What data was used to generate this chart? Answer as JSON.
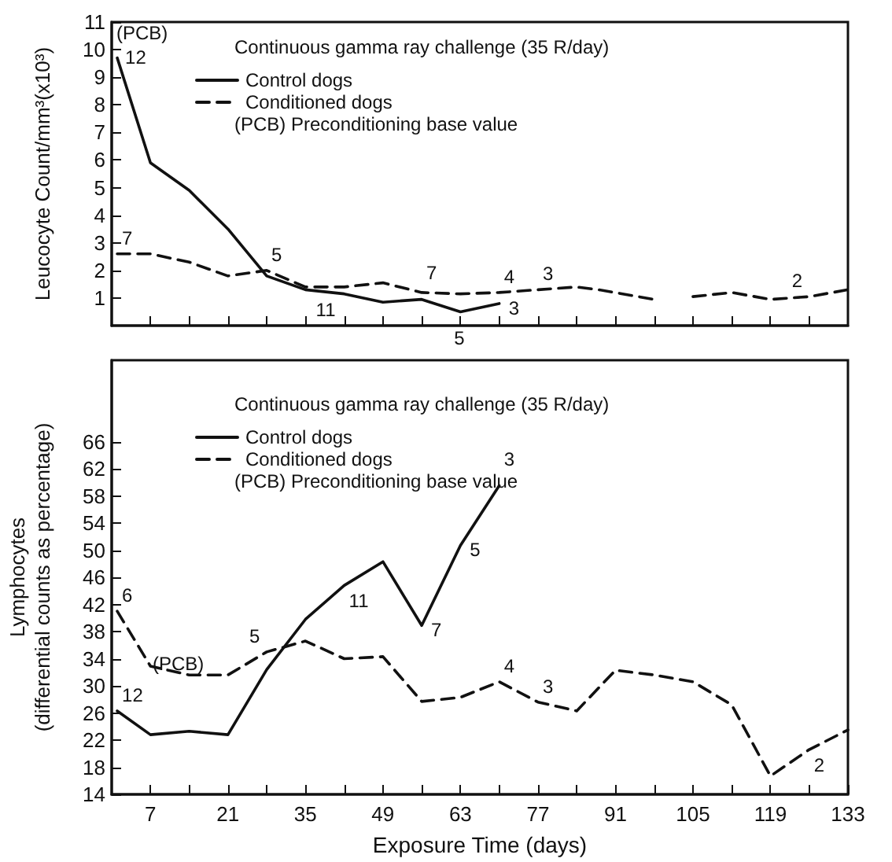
{
  "chart_data": [
    {
      "type": "line",
      "ylabel": "Leucocyte Count/mm³(x10³)",
      "legend_title": "Continuous gamma ray challenge (35 R/day)",
      "legend": "top",
      "marker": "none",
      "grid": false,
      "tick_labels": "y",
      "xlim": [
        0,
        133
      ],
      "xticks": [
        {
          "value": 7,
          "label": null
        },
        {
          "value": 14,
          "label": null
        },
        {
          "value": 21,
          "label": null
        },
        {
          "value": 28,
          "label": null
        },
        {
          "value": 35,
          "label": null
        },
        {
          "value": 42,
          "label": null
        },
        {
          "value": 49,
          "label": null
        },
        {
          "value": 56,
          "label": null
        },
        {
          "value": 63,
          "label": null
        },
        {
          "value": 70,
          "label": null
        },
        {
          "value": 77,
          "label": null
        },
        {
          "value": 84,
          "label": null
        },
        {
          "value": 91,
          "label": null
        },
        {
          "value": 98,
          "label": null
        },
        {
          "value": 105,
          "label": null
        },
        {
          "value": 112,
          "label": null
        },
        {
          "value": 119,
          "label": null
        },
        {
          "value": 126,
          "label": null
        }
      ],
      "ylim": [
        0,
        11
      ],
      "yticks": [
        1,
        2,
        3,
        4,
        5,
        6,
        7,
        8,
        9,
        10,
        11
      ],
      "series": [
        {
          "name": "Control dogs",
          "color": "#111111",
          "line_style": "solid",
          "x": [
            1,
            7,
            14,
            21,
            28,
            35,
            42,
            49,
            56,
            63,
            70
          ],
          "values": [
            9.7,
            5.9,
            4.9,
            3.5,
            1.8,
            1.3,
            1.15,
            0.85,
            0.95,
            0.5,
            0.8
          ]
        },
        {
          "name": "Conditioned dogs",
          "color": "#111111",
          "line_style": "dashed",
          "x": [
            1,
            7,
            14,
            21,
            28,
            35,
            42,
            49,
            56,
            63,
            70,
            77,
            84,
            88,
            98,
            101,
            105,
            112,
            119,
            126,
            133
          ],
          "values": [
            2.6,
            2.6,
            2.3,
            1.8,
            2.0,
            1.4,
            1.4,
            1.55,
            1.2,
            1.15,
            1.2,
            1.3,
            1.4,
            1.3,
            0.95,
            null,
            1.05,
            1.2,
            0.95,
            1.05,
            1.3
          ]
        }
      ],
      "annotations": [
        "(PCB) Preconditioning base value",
        "(PCB)",
        {
          "text": "12",
          "x": 1,
          "y": 9.7
        },
        {
          "text": "7",
          "x": 1,
          "y": 2.6
        },
        {
          "text": "5",
          "x": 28,
          "y": 2.0
        },
        {
          "text": "11",
          "x": 42,
          "y": 1.15
        },
        {
          "text": "7",
          "x": 56,
          "y": 0.95
        },
        {
          "text": "5",
          "x": 63,
          "y": 0.5
        },
        {
          "text": "3",
          "x": 70,
          "y": 0.8
        },
        {
          "text": "4",
          "x": 70,
          "y": 1.2
        },
        {
          "text": "3",
          "x": 77,
          "y": 1.3
        },
        {
          "text": "2",
          "x": 126,
          "y": 1.05
        }
      ]
    },
    {
      "type": "line",
      "xlabel": "Exposure Time (days)",
      "ylabel": "Lymphocytes\n(differential counts as percentage)",
      "legend_title": "Continuous gamma ray challenge (35 R/day)",
      "legend": "top",
      "marker": "none",
      "grid": false,
      "xlim": [
        0,
        133
      ],
      "xticks": [
        7,
        {
          "value": 14,
          "label": null
        },
        21,
        {
          "value": 28,
          "label": null
        },
        35,
        {
          "value": 42,
          "label": null
        },
        49,
        {
          "value": 56,
          "label": null
        },
        63,
        {
          "value": 70,
          "label": null
        },
        77,
        {
          "value": 84,
          "label": null
        },
        91,
        {
          "value": 98,
          "label": null
        },
        105,
        {
          "value": 112,
          "label": null
        },
        119,
        {
          "value": 126,
          "label": null
        },
        133
      ],
      "ylim": [
        14,
        78
      ],
      "yticks": [
        14,
        18,
        22,
        26,
        30,
        34,
        38,
        42,
        46,
        50,
        54,
        58,
        62,
        66
      ],
      "series": [
        {
          "name": "Control dogs",
          "color": "#111111",
          "line_style": "solid",
          "x": [
            1,
            7,
            14,
            21,
            28,
            35,
            42,
            49,
            56,
            63,
            70
          ],
          "values": [
            26.3,
            22.8,
            23.3,
            22.8,
            32.4,
            39.8,
            44.8,
            48.3,
            38.9,
            50.7,
            59.5
          ]
        },
        {
          "name": "Conditioned dogs",
          "color": "#111111",
          "line_style": "dashed",
          "x": [
            1,
            7,
            14,
            21,
            28,
            35,
            42,
            49,
            56,
            63,
            70,
            77,
            84,
            91,
            98,
            105,
            112,
            119,
            126,
            133
          ],
          "values": [
            41,
            32.9,
            31.6,
            31.6,
            35,
            36.6,
            34,
            34.3,
            27.7,
            28.3,
            30.6,
            27.6,
            26.3,
            32.3,
            31.6,
            30.6,
            27.2,
            16.7,
            20.6,
            23.5
          ]
        }
      ],
      "annotations": [
        "(PCB) Preconditioning base value",
        "(PCB)",
        {
          "text": "6",
          "x": 1,
          "y": 41
        },
        {
          "text": "12",
          "x": 1,
          "y": 26.3
        },
        {
          "text": "5",
          "x": 28,
          "y": 35
        },
        {
          "text": "11",
          "x": 42,
          "y": 44.8
        },
        {
          "text": "7",
          "x": 56,
          "y": 38.9
        },
        {
          "text": "5",
          "x": 63,
          "y": 50.7
        },
        {
          "text": "3",
          "x": 70,
          "y": 59.5
        },
        {
          "text": "4",
          "x": 70,
          "y": 30.6
        },
        {
          "text": "3",
          "x": 77,
          "y": 27.6
        },
        {
          "text": "2",
          "x": 126,
          "y": 20.6
        }
      ]
    }
  ]
}
